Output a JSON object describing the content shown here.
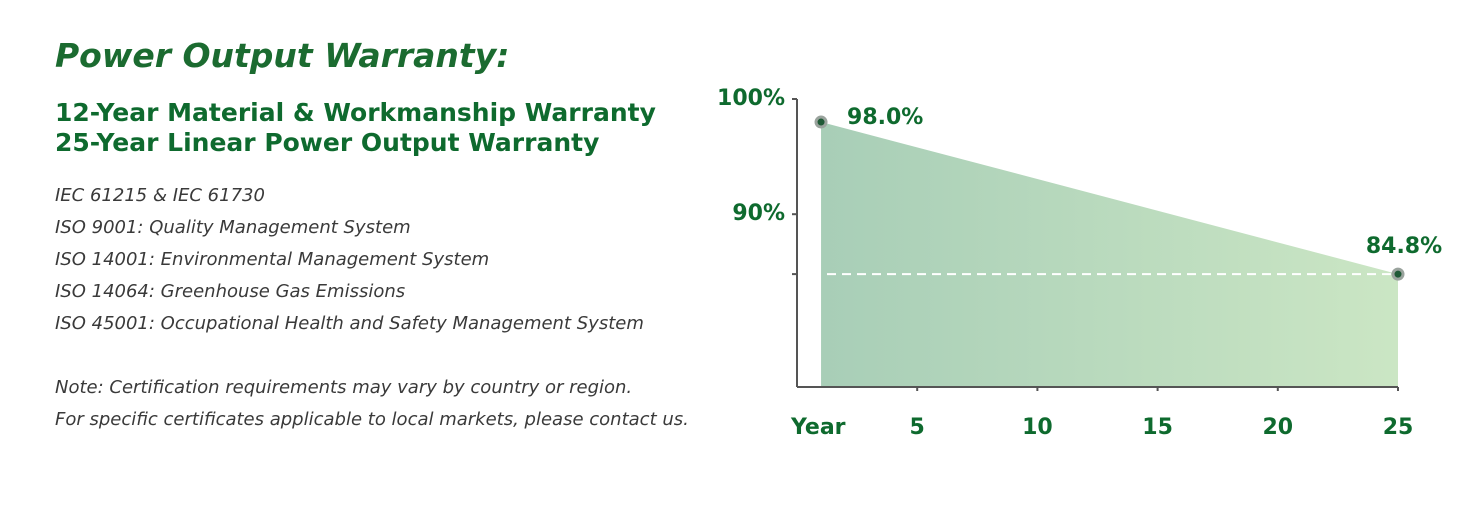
{
  "header": {
    "title": "Power Output Warranty:",
    "subtitle_lines": [
      "12-Year Material & Workmanship Warranty",
      "25-Year Linear Power Output Warranty"
    ]
  },
  "certifications": [
    "IEC 61215 & IEC 61730",
    "ISO 9001: Quality Management System",
    "ISO 14001: Environmental Management System",
    "ISO 14064: Greenhouse Gas Emissions",
    "ISO 45001: Occupational Health and Safety Management System"
  ],
  "note": [
    "Note: Certification requirements may vary by country or region.",
    "For specific certificates applicable to local markets, please contact us."
  ],
  "chart_data": {
    "type": "area",
    "x_label": "Year",
    "x": [
      1,
      25
    ],
    "values": [
      98.0,
      84.8
    ],
    "value_labels": [
      "98.0%",
      "84.8%"
    ],
    "colors": [
      "#a8ceb7",
      "#cbe6c4"
    ],
    "xlim": [
      0,
      25
    ],
    "xticks": [
      5,
      10,
      15,
      20,
      25
    ],
    "ylim": [
      75,
      100
    ],
    "yticks": [
      {
        "value": 90,
        "label": "90%"
      },
      {
        "value": 100,
        "label": "100%"
      }
    ]
  }
}
